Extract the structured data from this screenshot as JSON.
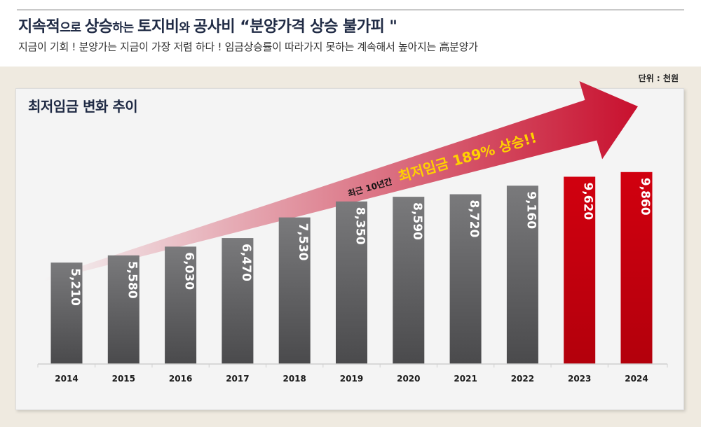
{
  "header": {
    "title_parts": [
      "지속적",
      "으로 ",
      "상승",
      "하는 ",
      "토지비",
      "와 ",
      "공사비 “분양가격 상승 불가피 \""
    ],
    "subtitle": "지금이 기회 ! 분양가는 지금이 가장 저렴 하다 ! 임금상승률이 따라가지 못하는 계속해서 높아지는 高분양가"
  },
  "unit_label": "단위 : 천원",
  "chart_data": {
    "type": "bar",
    "title": "최저임금 변화 추이",
    "categories": [
      "2014",
      "2015",
      "2016",
      "2017",
      "2018",
      "2019",
      "2020",
      "2021",
      "2022",
      "2023",
      "2024"
    ],
    "values": [
      5210,
      5580,
      6030,
      6470,
      7530,
      8350,
      8590,
      8720,
      9160,
      9620,
      9860
    ],
    "value_labels": [
      "5,210",
      "5,580",
      "6,030",
      "6,470",
      "7,530",
      "8,350",
      "8,590",
      "8,720",
      "9,160",
      "9,620",
      "9,860"
    ],
    "highlight": [
      false,
      false,
      false,
      false,
      false,
      false,
      false,
      false,
      false,
      true,
      true
    ],
    "ylim": [
      0,
      10500
    ],
    "annotation": {
      "small_text": "최근 10년간",
      "big_text": "최저임금 189% 상승!!"
    },
    "colors": {
      "bar": "#6b6b6d",
      "highlight": "#c4000e",
      "arrow": "#c8102e",
      "callout": "#ffd200"
    }
  }
}
